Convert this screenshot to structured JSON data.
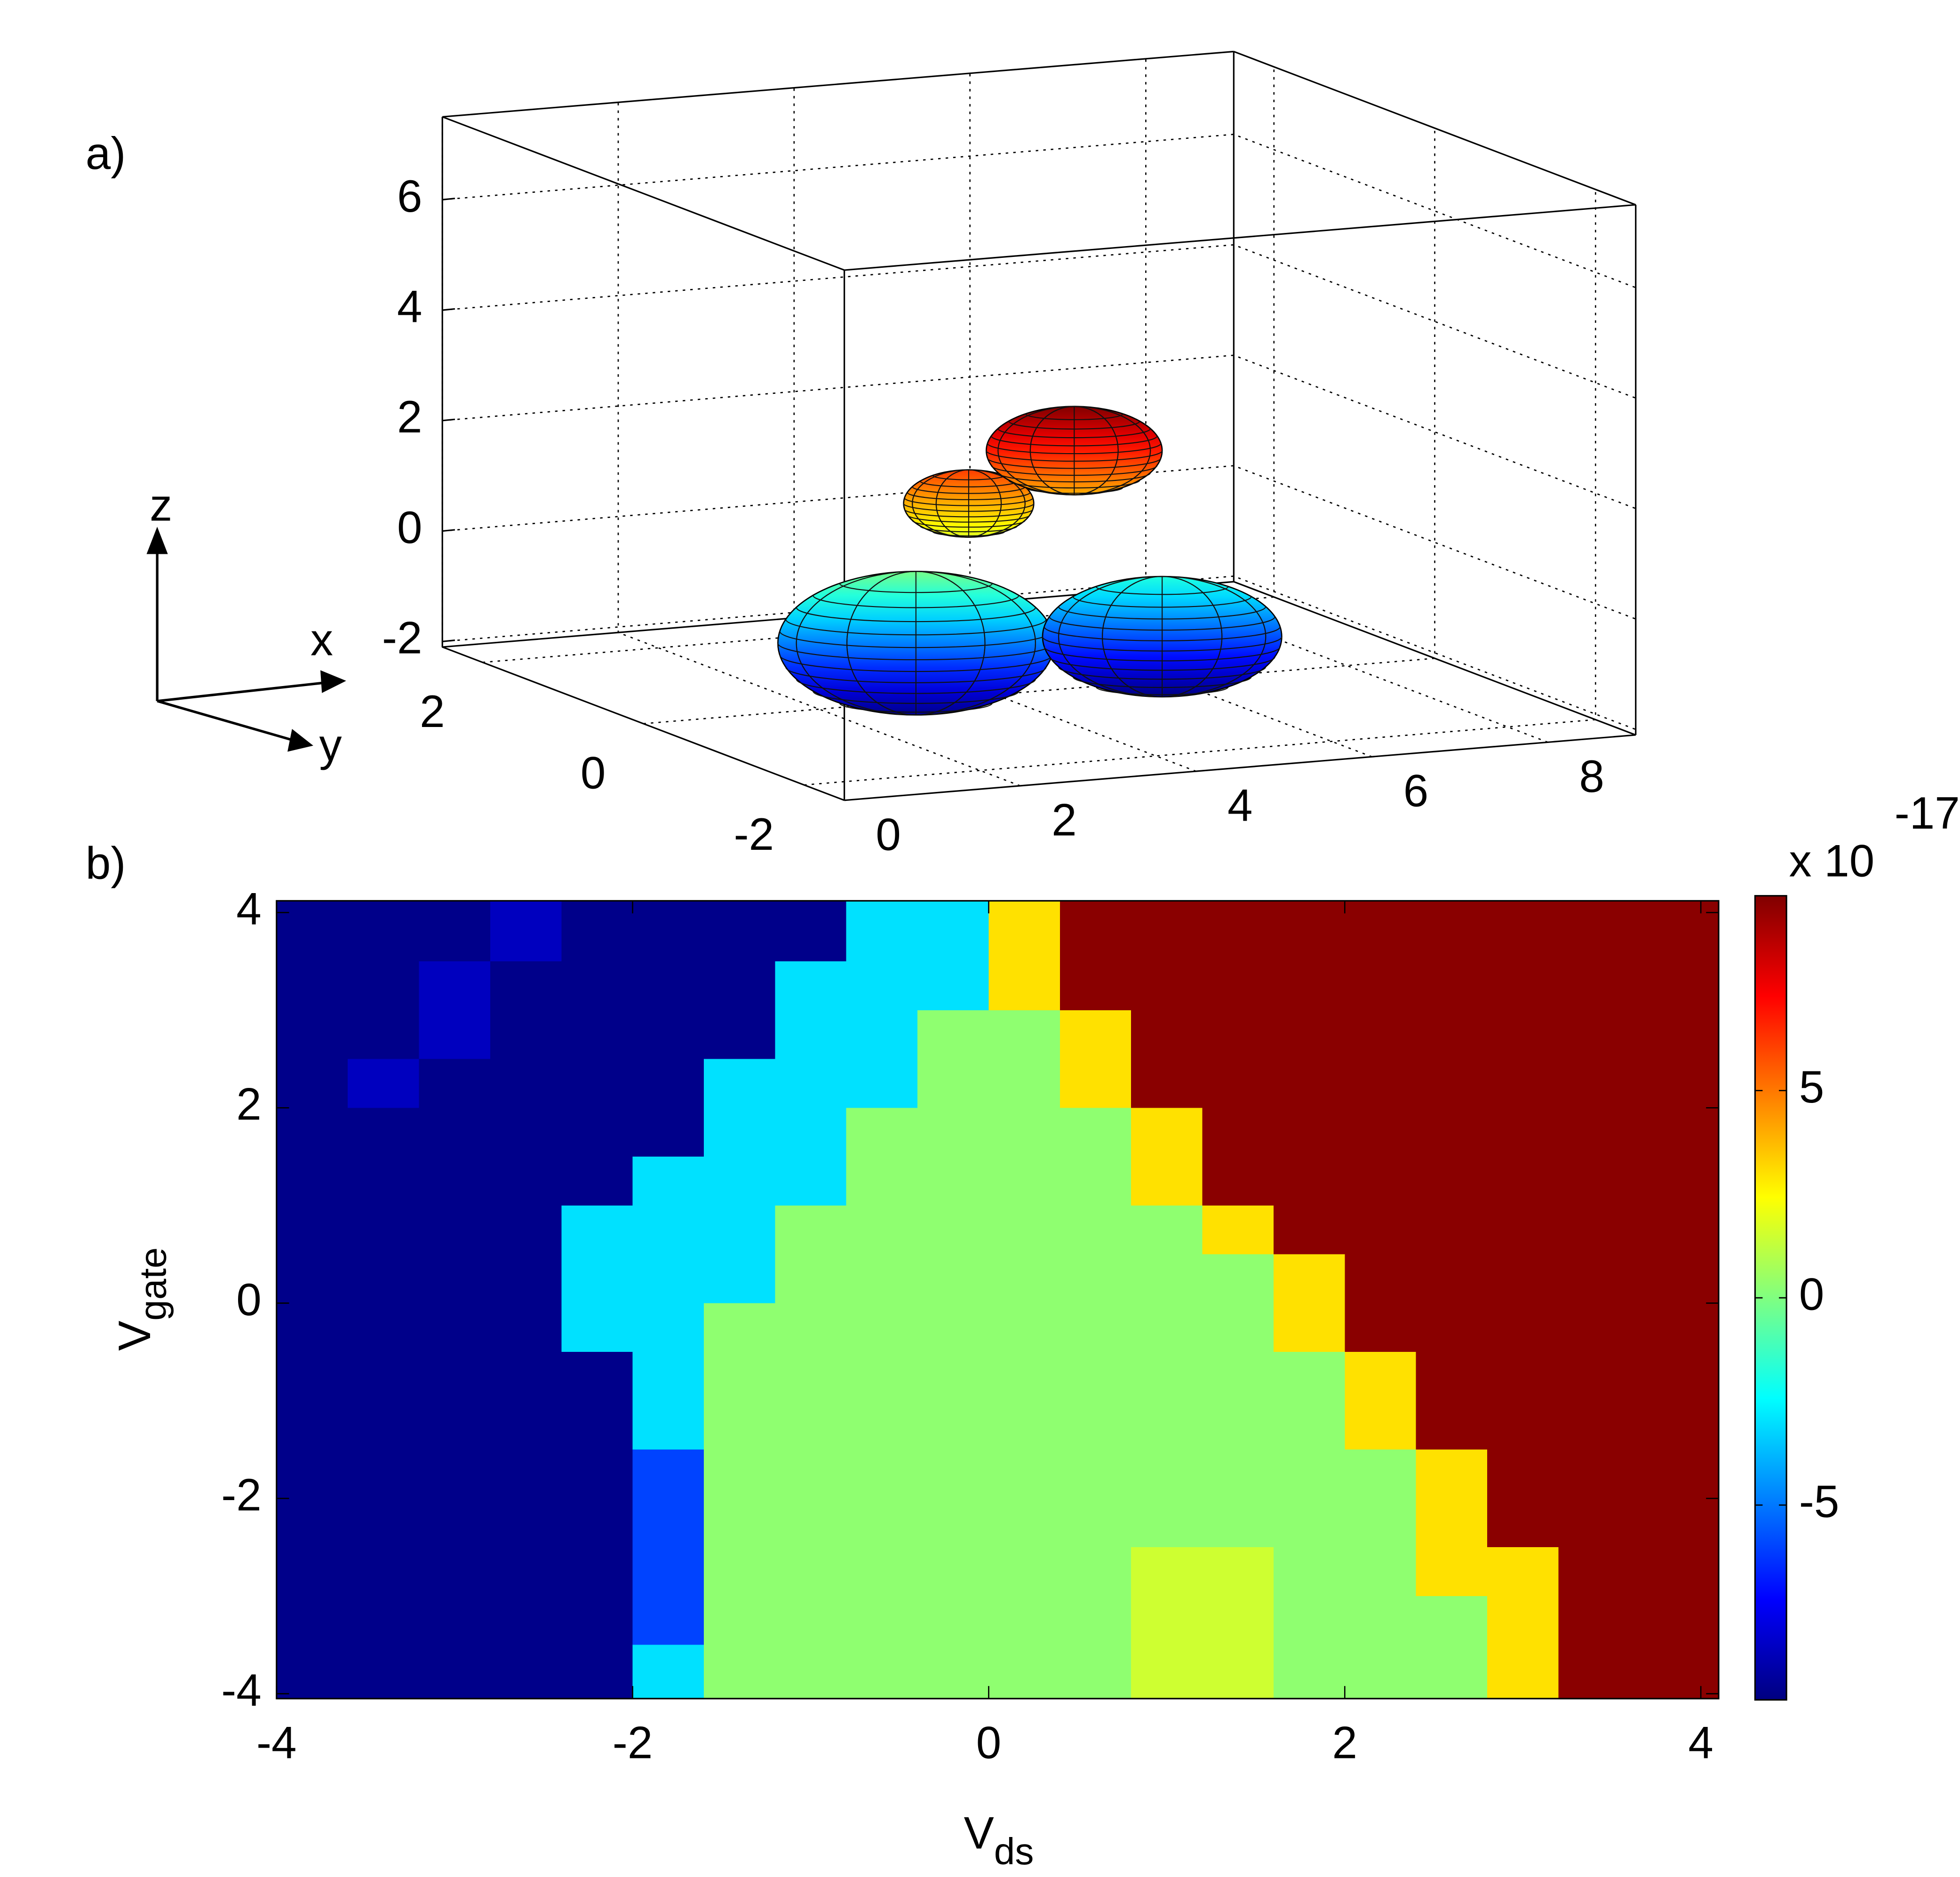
{
  "chart_data": [
    {
      "type": "ellipsoid3d",
      "panel_label": "a)",
      "xlim": [
        0,
        9
      ],
      "ylim": [
        -2.5,
        2.5
      ],
      "zlim": [
        -2.1,
        7.5
      ],
      "xticks": [
        0,
        2,
        4,
        6,
        8
      ],
      "yticks": [
        -2,
        0,
        2
      ],
      "zticks": [
        -2,
        0,
        2,
        4,
        6
      ],
      "grid": true,
      "colormap": "jet",
      "clim": [
        -2.4,
        3
      ],
      "axes_glyph": {
        "z": "z",
        "x": "x",
        "y": "y"
      },
      "ellipsoids": [
        {
          "center": [
            3.1,
            0,
            -1.05
          ],
          "radii": [
            1.57,
            1.2,
            1.3
          ]
        },
        {
          "center": [
            5.9,
            0,
            -1.3
          ],
          "radii": [
            1.36,
            1.1,
            1.09
          ]
        },
        {
          "center": [
            3.7,
            0,
            1.4
          ],
          "radii": [
            0.74,
            0.6,
            0.61
          ]
        },
        {
          "center": [
            4.9,
            0,
            2.2
          ],
          "radii": [
            1.0,
            0.8,
            0.8
          ]
        }
      ]
    },
    {
      "type": "heatmap",
      "panel_label": "b)",
      "xlabel": {
        "main": "V",
        "sub": "ds"
      },
      "ylabel": {
        "main": "V",
        "sub": "gate"
      },
      "xlim": [
        -4,
        4.1
      ],
      "ylim": [
        -4.05,
        4.12
      ],
      "xticks": [
        -4,
        -2,
        0,
        2,
        4
      ],
      "yticks": [
        -4,
        -2,
        0,
        2,
        4
      ],
      "colormap": "jet",
      "clim": [
        -9.7,
        9.7
      ],
      "colorbar_ticks": [
        -5,
        0,
        5
      ],
      "colorbar_exponent_prefix": "x 10",
      "colorbar_exponent": "-17",
      "x": [
        -3.8,
        -3.4,
        -3.0,
        -2.6,
        -2.2,
        -1.8,
        -1.4,
        -1.0,
        -0.6,
        -0.2,
        0.2,
        0.6,
        1.0,
        1.4,
        1.8,
        2.2,
        2.6,
        3.0,
        3.4,
        3.8
      ],
      "y": [
        3.75,
        3.25,
        2.75,
        2.25,
        1.75,
        1.25,
        0.75,
        0.25,
        -0.25,
        -0.75,
        -1.25,
        -1.75,
        -2.25,
        -2.75,
        -3.25,
        -3.75
      ],
      "values": [
        [
          -9.5,
          -9.5,
          -9.5,
          -8.5,
          -9.5,
          -9.5,
          -9.5,
          -9.5,
          -3,
          -3,
          3,
          9.5,
          9.5,
          9.5,
          9.5,
          9.5,
          9.5,
          9.5,
          9.5,
          9.5
        ],
        [
          -9.5,
          -9.5,
          -8.5,
          -9.5,
          -9.5,
          -9.5,
          -9.5,
          -3,
          -3,
          -3,
          3,
          9.5,
          9.5,
          9.5,
          9.5,
          9.5,
          9.5,
          9.5,
          9.5,
          9.5
        ],
        [
          -9.5,
          -9.5,
          -8.5,
          -9.5,
          -9.5,
          -9.5,
          -9.5,
          -3,
          -3,
          0.3,
          0.3,
          3,
          9.5,
          9.5,
          9.5,
          9.5,
          9.5,
          9.5,
          9.5,
          9.5
        ],
        [
          -9.5,
          -8.5,
          -9.5,
          -9.5,
          -9.5,
          -9.5,
          -3,
          -3,
          -3,
          0.3,
          0.3,
          3,
          9.5,
          9.5,
          9.5,
          9.5,
          9.5,
          9.5,
          9.5,
          9.5
        ],
        [
          -9.5,
          -9.5,
          -9.5,
          -9.5,
          -9.5,
          -9.5,
          -3,
          -3,
          0.3,
          0.3,
          0.3,
          0.3,
          3,
          9.5,
          9.5,
          9.5,
          9.5,
          9.5,
          9.5,
          9.5
        ],
        [
          -9.5,
          -9.5,
          -9.5,
          -9.5,
          -9.5,
          -3,
          -3,
          -3,
          0.3,
          0.3,
          0.3,
          0.3,
          3,
          9.5,
          9.5,
          9.5,
          9.5,
          9.5,
          9.5,
          9.5
        ],
        [
          -9.5,
          -9.5,
          -9.5,
          -9.5,
          -3,
          -3,
          -3,
          0.3,
          0.3,
          0.3,
          0.3,
          0.3,
          0.3,
          3,
          9.5,
          9.5,
          9.5,
          9.5,
          9.5,
          9.5
        ],
        [
          -9.5,
          -9.5,
          -9.5,
          -9.5,
          -3,
          -3,
          -3,
          0.3,
          0.3,
          0.3,
          0.3,
          0.3,
          0.3,
          0.3,
          3,
          9.5,
          9.5,
          9.5,
          9.5,
          9.5
        ],
        [
          -9.5,
          -9.5,
          -9.5,
          -9.5,
          -3,
          -3,
          0.3,
          0.3,
          0.3,
          0.3,
          0.3,
          0.3,
          0.3,
          0.3,
          3,
          9.5,
          9.5,
          9.5,
          9.5,
          9.5
        ],
        [
          -9.5,
          -9.5,
          -9.5,
          -9.5,
          -9.5,
          -3,
          0.3,
          0.3,
          0.3,
          0.3,
          0.3,
          0.3,
          0.3,
          0.3,
          0.3,
          3,
          9.5,
          9.5,
          9.5,
          9.5
        ],
        [
          -9.5,
          -9.5,
          -9.5,
          -9.5,
          -9.5,
          -3,
          0.3,
          0.3,
          0.3,
          0.3,
          0.3,
          0.3,
          0.3,
          0.3,
          0.3,
          3,
          9.5,
          9.5,
          9.5,
          9.5
        ],
        [
          -9.5,
          -9.5,
          -9.5,
          -9.5,
          -9.5,
          -6,
          0.3,
          0.3,
          0.3,
          0.3,
          0.3,
          0.3,
          0.3,
          0.3,
          0.3,
          0.3,
          3,
          9.5,
          9.5,
          9.5
        ],
        [
          -9.5,
          -9.5,
          -9.5,
          -9.5,
          -9.5,
          -6,
          0.3,
          0.3,
          0.3,
          0.3,
          0.3,
          0.3,
          0.3,
          0.3,
          0.3,
          0.3,
          3,
          9.5,
          9.5,
          9.5
        ],
        [
          -9.5,
          -9.5,
          -9.5,
          -9.5,
          -9.5,
          -6,
          0.3,
          0.3,
          0.3,
          0.3,
          0.3,
          0.3,
          1.5,
          1.5,
          0.3,
          0.3,
          3,
          3,
          9.5,
          9.5
        ],
        [
          -9.5,
          -9.5,
          -9.5,
          -9.5,
          -9.5,
          -6,
          0.3,
          0.3,
          0.3,
          0.3,
          0.3,
          0.3,
          1.5,
          1.5,
          0.3,
          0.3,
          0.3,
          3,
          9.5,
          9.5
        ],
        [
          -9.5,
          -9.5,
          -9.5,
          -9.5,
          -9.5,
          -3,
          0.3,
          0.3,
          0.3,
          0.3,
          0.3,
          0.3,
          1.5,
          1.5,
          0.3,
          0.3,
          0.3,
          3,
          9.5,
          9.5
        ]
      ]
    }
  ]
}
